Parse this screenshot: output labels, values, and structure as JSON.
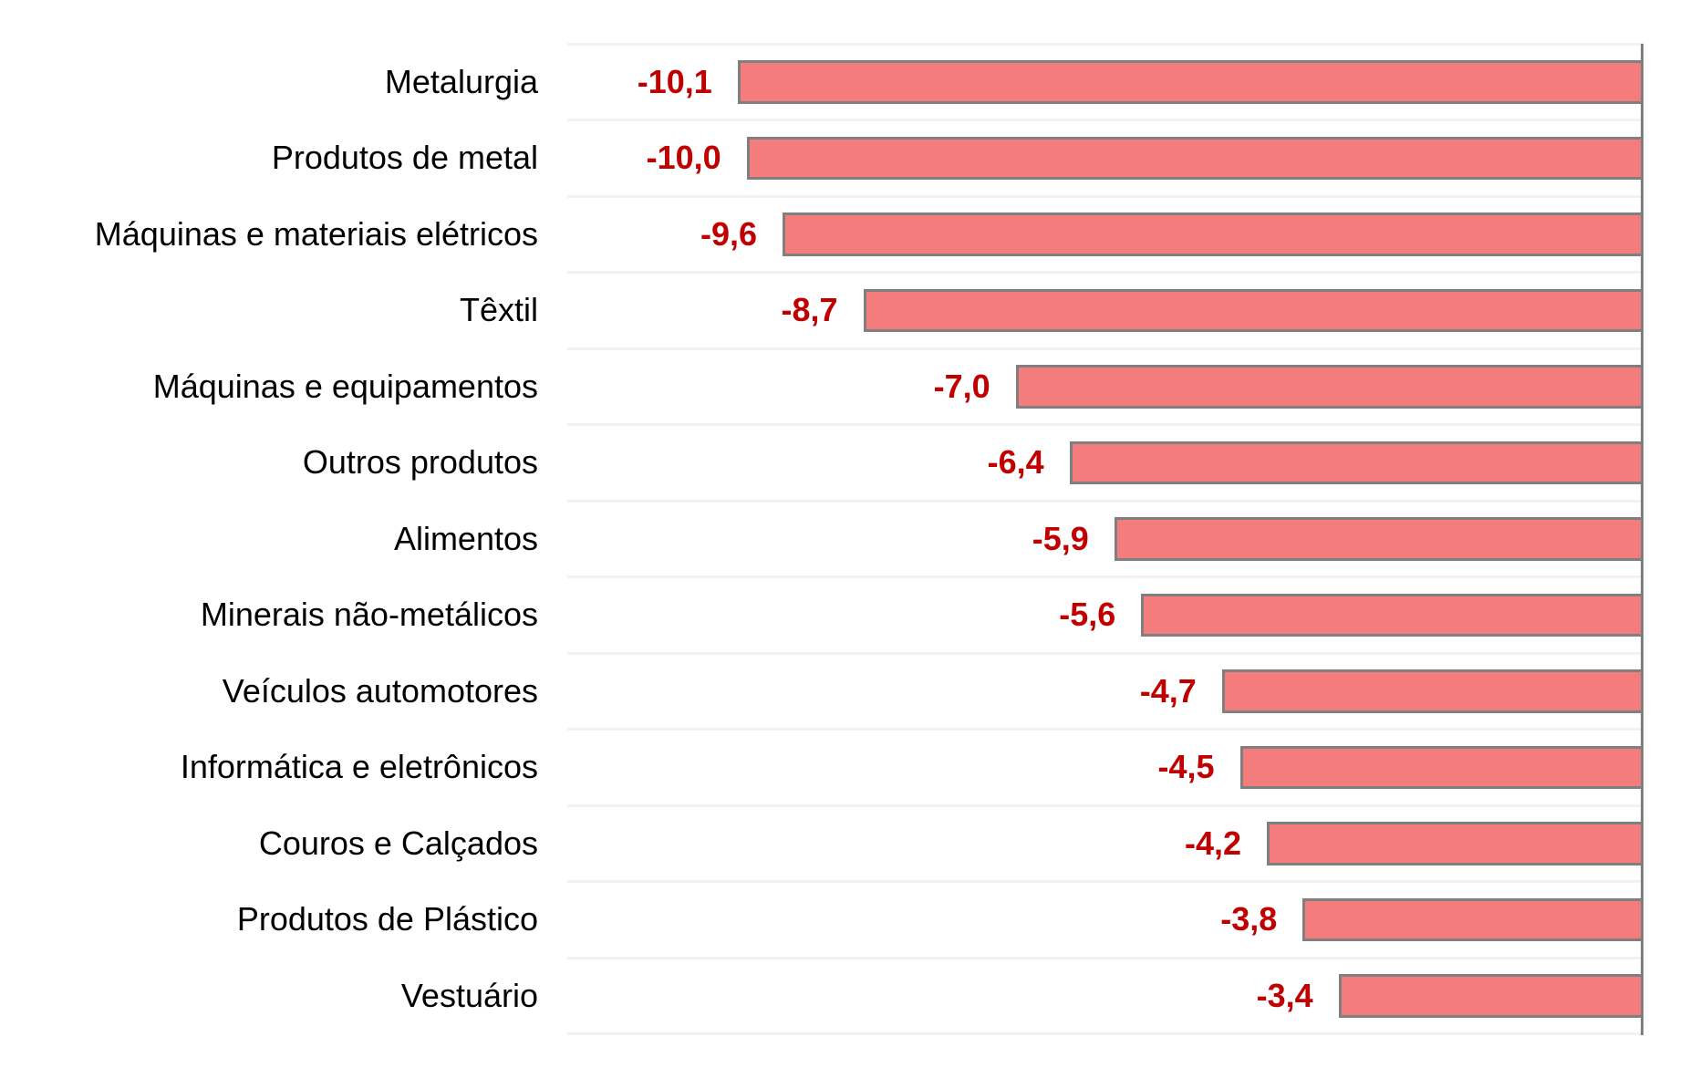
{
  "chart_data": {
    "type": "bar",
    "orientation": "horizontal",
    "title": "",
    "categories": [
      "Metalurgia",
      "Produtos de metal",
      "Máquinas e materiais elétricos",
      "Têxtil",
      "Máquinas e equipamentos",
      "Outros produtos",
      "Alimentos",
      "Minerais não-metálicos",
      "Veículos automotores",
      "Informática e eletrônicos",
      "Couros e Calçados",
      "Produtos de Plástico",
      "Vestuário"
    ],
    "values": [
      -10.1,
      -10.0,
      -9.6,
      -8.7,
      -7.0,
      -6.4,
      -5.9,
      -5.6,
      -4.7,
      -4.5,
      -4.2,
      -3.8,
      -3.4
    ],
    "value_labels": [
      "-10,1",
      "-10,0",
      "-9,6",
      "-8,7",
      "-7,0",
      "-6,4",
      "-5,9",
      "-5,6",
      "-4,7",
      "-4,5",
      "-4,2",
      "-3,8",
      "-3,4"
    ],
    "xlim": [
      -12,
      0
    ],
    "legend": "none",
    "grid": "horizontal row separators only",
    "colors": {
      "bar_fill": "#F47C7C",
      "bar_border": "#7F7F7F",
      "value_label": "#C00000",
      "category_label": "#000000",
      "gridline": "#F2F2F2",
      "zero_axis_line": "#7F7F7F",
      "background": "#FFFFFF"
    }
  }
}
